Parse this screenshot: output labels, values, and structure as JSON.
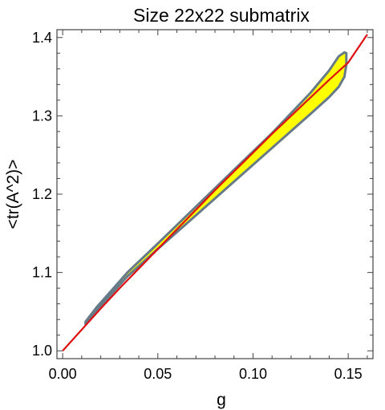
{
  "chart_data": {
    "type": "area",
    "title": "Size 22x22 submatrix",
    "xlabel": "g",
    "ylabel": "<tr(A^2)>",
    "xlim": [
      -0.003,
      0.163
    ],
    "ylim": [
      0.99,
      1.41
    ],
    "x_major_ticks": [
      0.0,
      0.05,
      0.1,
      0.15
    ],
    "x_tick_labels": [
      "0.00",
      "0.05",
      "0.10",
      "0.15"
    ],
    "y_major_ticks": [
      1.0,
      1.1,
      1.2,
      1.3,
      1.4
    ],
    "y_tick_labels": [
      "1.0",
      "1.1",
      "1.2",
      "1.3",
      "1.4"
    ],
    "grid": false,
    "colors": {
      "line": "#dd1111",
      "band_fill": "#ffff00",
      "band_edge": "#667a88"
    },
    "series": [
      {
        "type": "line",
        "x": [
          0.0,
          0.01,
          0.02,
          0.03,
          0.04,
          0.05,
          0.06,
          0.07,
          0.08,
          0.09,
          0.1,
          0.11,
          0.12,
          0.13,
          0.14,
          0.15,
          0.16
        ],
        "values": [
          1.0,
          1.027,
          1.054,
          1.08,
          1.105,
          1.13,
          1.155,
          1.18,
          1.205,
          1.229,
          1.253,
          1.277,
          1.3,
          1.323,
          1.346,
          1.368,
          1.404
        ]
      },
      {
        "type": "band",
        "x": [
          0.012,
          0.018,
          0.034,
          0.05,
          0.07,
          0.09,
          0.11,
          0.13,
          0.14,
          0.145,
          0.148,
          0.149
        ],
        "lower": [
          1.034,
          1.052,
          1.095,
          1.13,
          1.173,
          1.216,
          1.259,
          1.302,
          1.324,
          1.337,
          1.35,
          1.365
        ],
        "upper": [
          1.037,
          1.056,
          1.1,
          1.137,
          1.184,
          1.231,
          1.278,
          1.329,
          1.358,
          1.376,
          1.381,
          1.38
        ]
      }
    ]
  }
}
